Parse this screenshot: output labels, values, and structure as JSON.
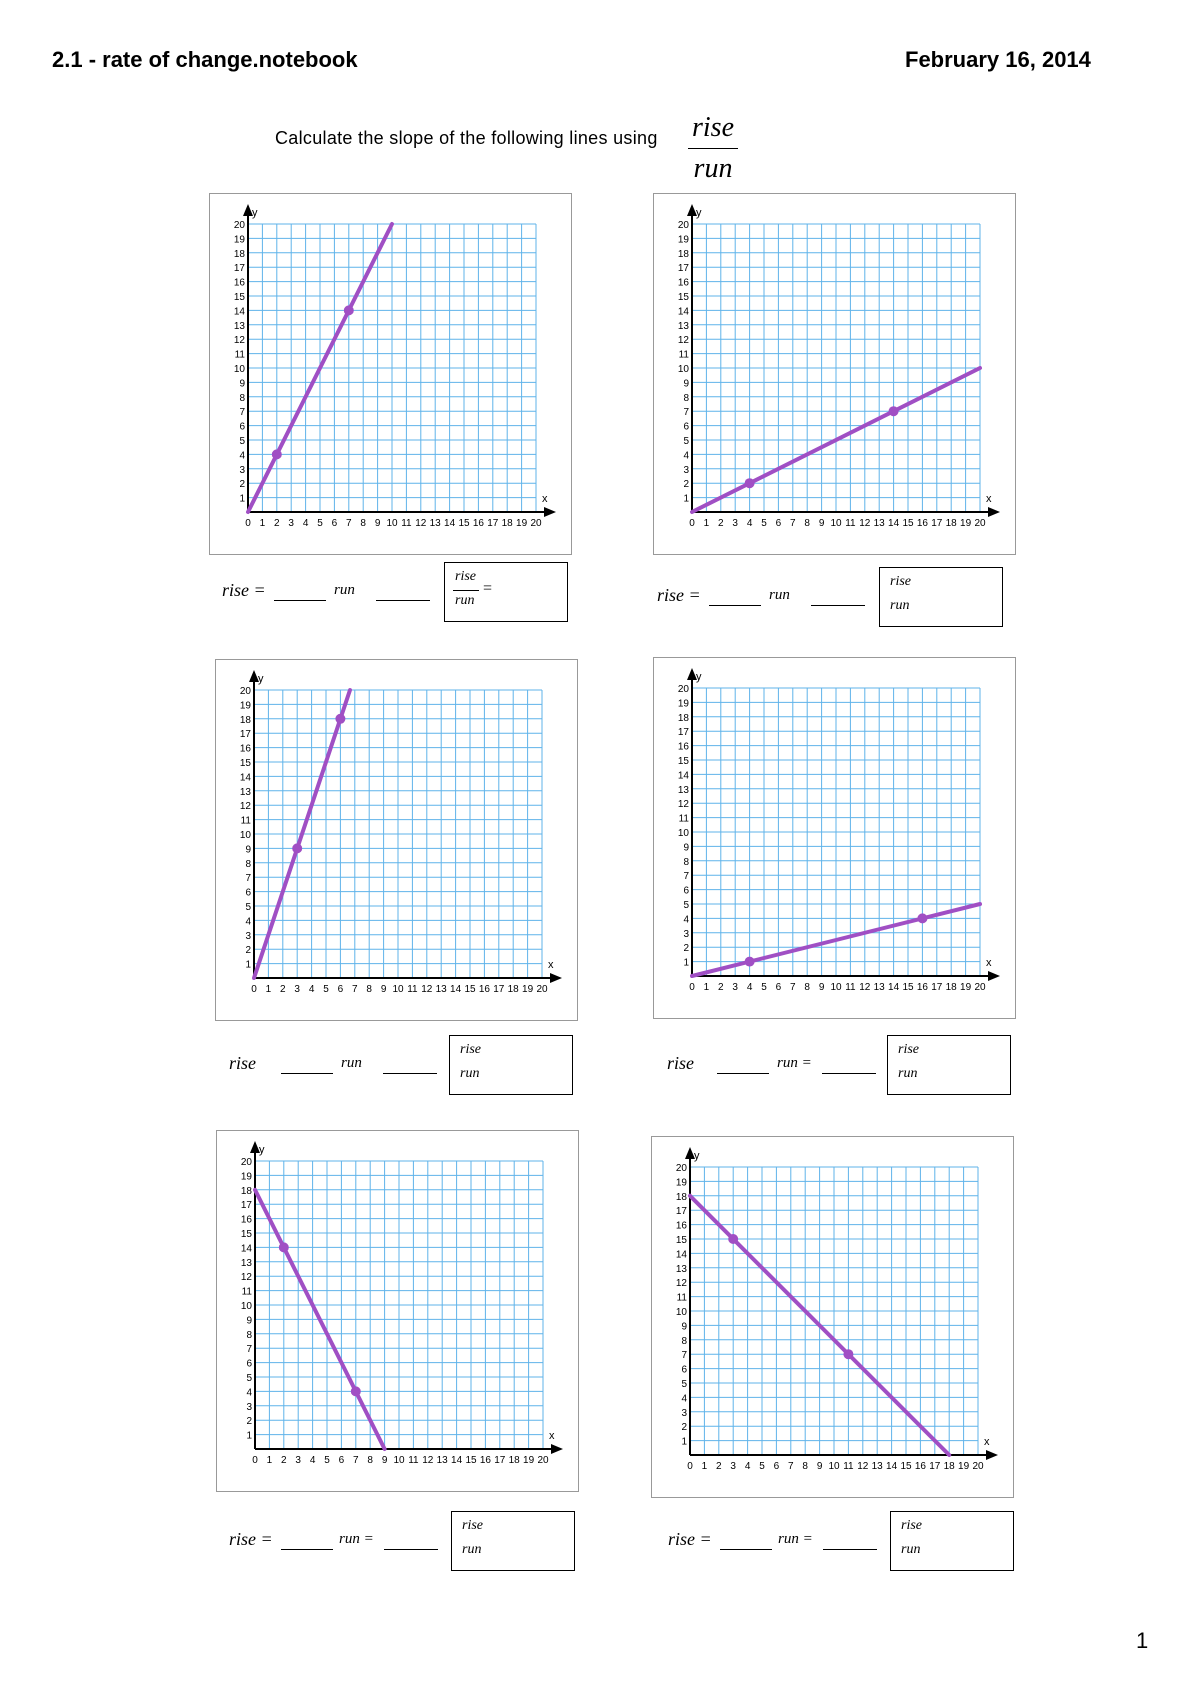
{
  "header": {
    "title": "2.1 - rate of change.notebook",
    "date": "February 16, 2014"
  },
  "instruction": {
    "text": "Calculate the slope of the following lines using",
    "frac_num": "rise",
    "frac_den": "run"
  },
  "answer_labels": {
    "rise": "rise =",
    "rise_plain": "rise",
    "run": "run",
    "run_eq": "run =",
    "frac_num": "rise",
    "frac_den": "run",
    "equals": "="
  },
  "axis": {
    "x_label": "x",
    "y_label": "y",
    "min": 0,
    "max": 20
  },
  "colors": {
    "grid": "#5fb3ea",
    "line": "#a04fc4",
    "axis": "#000000"
  },
  "graphs": [
    {
      "id": "graph-1",
      "points": [
        [
          2,
          4
        ],
        [
          7,
          14
        ]
      ]
    },
    {
      "id": "graph-2",
      "points": [
        [
          4,
          2
        ],
        [
          14,
          7
        ]
      ]
    },
    {
      "id": "graph-3",
      "points": [
        [
          3,
          9
        ],
        [
          6,
          18
        ]
      ]
    },
    {
      "id": "graph-4",
      "points": [
        [
          4,
          1
        ],
        [
          16,
          4
        ]
      ]
    },
    {
      "id": "graph-5",
      "points": [
        [
          2,
          14
        ],
        [
          7,
          4
        ]
      ]
    },
    {
      "id": "graph-6",
      "points": [
        [
          3,
          15
        ],
        [
          11,
          7
        ]
      ]
    }
  ],
  "page_number": "1"
}
